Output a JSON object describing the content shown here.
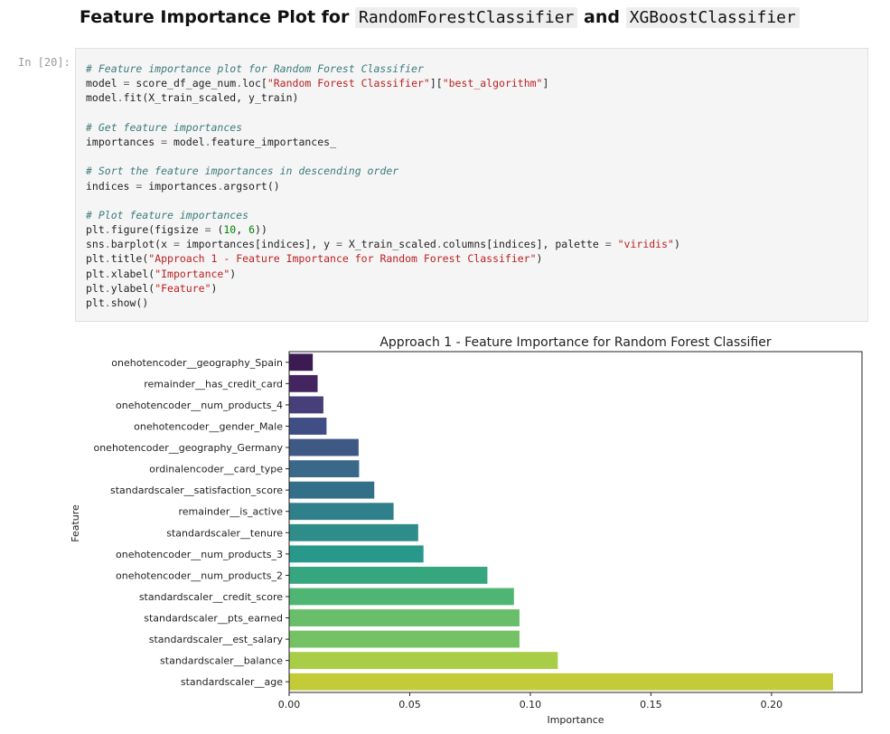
{
  "notebook": {
    "heading": {
      "text_before": "Feature Importance Plot for",
      "code1": "RandomForestClassifier",
      "text_mid": "and",
      "code2": "XGBoostClassifier"
    },
    "cell_prompt": "In [20]:",
    "code": [
      [
        [
          "c",
          "# Feature importance plot for Random Forest Classifier"
        ]
      ],
      [
        [
          "t",
          "model "
        ],
        [
          "o",
          "="
        ],
        [
          "t",
          " score_df_age_num"
        ],
        [
          "o",
          "."
        ],
        [
          "t",
          "loc["
        ],
        [
          "s",
          "\"Random Forest Classifier\""
        ],
        [
          "t",
          "]["
        ],
        [
          "s",
          "\"best_algorithm\""
        ],
        [
          "t",
          "]"
        ]
      ],
      [
        [
          "t",
          "model"
        ],
        [
          "o",
          "."
        ],
        [
          "t",
          "fit(X_train_scaled, y_train)"
        ]
      ],
      [],
      [
        [
          "c",
          "# Get feature importances"
        ]
      ],
      [
        [
          "t",
          "importances "
        ],
        [
          "o",
          "="
        ],
        [
          "t",
          " model"
        ],
        [
          "o",
          "."
        ],
        [
          "t",
          "feature_importances_"
        ]
      ],
      [],
      [
        [
          "c",
          "# Sort the feature importances in descending order"
        ]
      ],
      [
        [
          "t",
          "indices "
        ],
        [
          "o",
          "="
        ],
        [
          "t",
          " importances"
        ],
        [
          "o",
          "."
        ],
        [
          "t",
          "argsort()"
        ]
      ],
      [],
      [
        [
          "c",
          "# Plot feature importances"
        ]
      ],
      [
        [
          "t",
          "plt"
        ],
        [
          "o",
          "."
        ],
        [
          "t",
          "figure(figsize "
        ],
        [
          "o",
          "="
        ],
        [
          "t",
          " ("
        ],
        [
          "n",
          "10"
        ],
        [
          "t",
          ", "
        ],
        [
          "n",
          "6"
        ],
        [
          "t",
          "))"
        ]
      ],
      [
        [
          "t",
          "sns"
        ],
        [
          "o",
          "."
        ],
        [
          "t",
          "barplot(x "
        ],
        [
          "o",
          "="
        ],
        [
          "t",
          " importances[indices], y "
        ],
        [
          "o",
          "="
        ],
        [
          "t",
          " X_train_scaled"
        ],
        [
          "o",
          "."
        ],
        [
          "t",
          "columns[indices], palette "
        ],
        [
          "o",
          "="
        ],
        [
          "t",
          " "
        ],
        [
          "s",
          "\"viridis\""
        ],
        [
          "t",
          ")"
        ]
      ],
      [
        [
          "t",
          "plt"
        ],
        [
          "o",
          "."
        ],
        [
          "t",
          "title("
        ],
        [
          "s",
          "\"Approach 1 - Feature Importance for Random Forest Classifier\""
        ],
        [
          "t",
          ")"
        ]
      ],
      [
        [
          "t",
          "plt"
        ],
        [
          "o",
          "."
        ],
        [
          "t",
          "xlabel("
        ],
        [
          "s",
          "\"Importance\""
        ],
        [
          "t",
          ")"
        ]
      ],
      [
        [
          "t",
          "plt"
        ],
        [
          "o",
          "."
        ],
        [
          "t",
          "ylabel("
        ],
        [
          "s",
          "\"Feature\""
        ],
        [
          "t",
          ")"
        ]
      ],
      [
        [
          "t",
          "plt"
        ],
        [
          "o",
          "."
        ],
        [
          "t",
          "show()"
        ]
      ]
    ]
  },
  "chart_data": {
    "type": "bar",
    "orientation": "horizontal",
    "title": "Approach 1 - Feature Importance for Random Forest Classifier",
    "xlabel": "Importance",
    "ylabel": "Feature",
    "xlim": [
      0,
      0.2375
    ],
    "xticks": [
      0,
      0.05,
      0.1,
      0.15,
      0.2
    ],
    "xtick_labels": [
      "0.00",
      "0.05",
      "0.10",
      "0.15",
      "0.20"
    ],
    "grid": false,
    "palette": "viridis",
    "categories": [
      "onehotencoder__geography_Spain",
      "remainder__has_credit_card",
      "onehotencoder__num_products_4",
      "onehotencoder__gender_Male",
      "onehotencoder__geography_Germany",
      "ordinalencoder__card_type",
      "standardscaler__satisfaction_score",
      "remainder__is_active",
      "standardscaler__tenure",
      "onehotencoder__num_products_3",
      "onehotencoder__num_products_2",
      "standardscaler__credit_score",
      "standardscaler__pts_earned",
      "standardscaler__est_salary",
      "standardscaler__balance",
      "standardscaler__age"
    ],
    "values": [
      0.0098,
      0.0118,
      0.0142,
      0.0155,
      0.0288,
      0.029,
      0.0353,
      0.0433,
      0.0535,
      0.0557,
      0.0822,
      0.0932,
      0.0955,
      0.0955,
      0.1114,
      0.2255
    ],
    "colors": [
      "#3b1b52",
      "#45255f",
      "#463f79",
      "#3f4e84",
      "#3f5985",
      "#3a6888",
      "#346f89",
      "#2f808b",
      "#2e8c89",
      "#28988a",
      "#35a67e",
      "#4fb573",
      "#68be69",
      "#74c263",
      "#a9cd47",
      "#c3cb38"
    ]
  }
}
